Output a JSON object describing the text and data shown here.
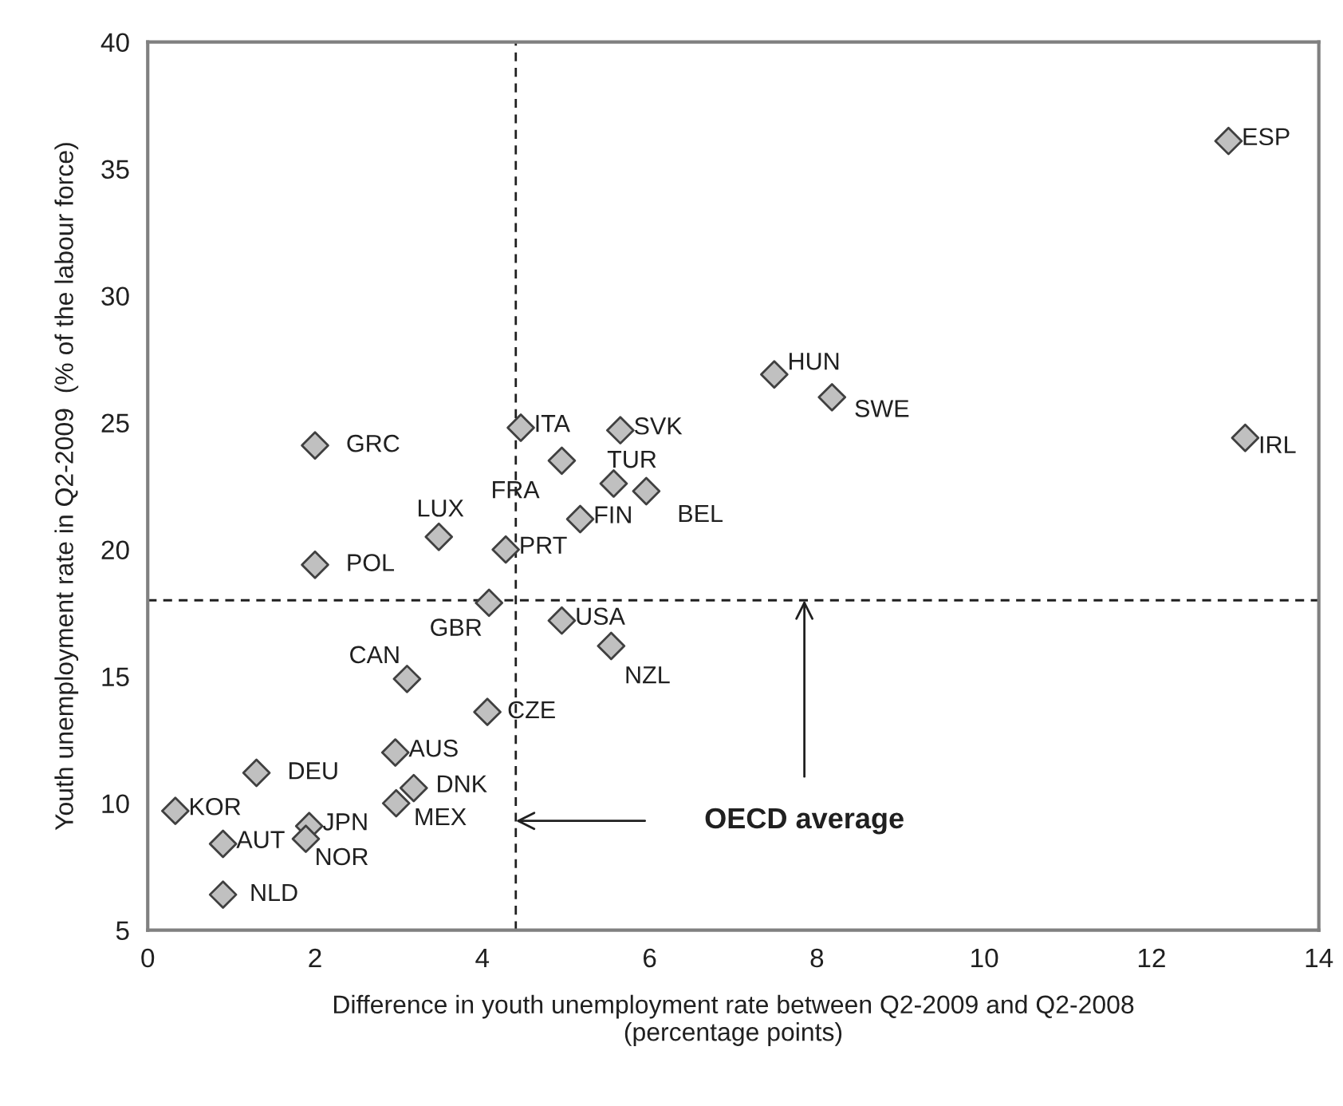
{
  "chart_data": {
    "type": "scatter",
    "xlabel": "Difference in youth unemployment rate between Q2-2009 and Q2-2008\n(percentage points)",
    "ylabel": "Youth unemployment rate in Q2-2009  (% of the labour force)",
    "x": [
      12.92,
      13.12,
      7.49,
      8.18,
      4.46,
      5.65,
      2.0,
      4.95,
      5.57,
      5.96,
      5.17,
      3.48,
      4.28,
      2.0,
      4.08,
      4.95,
      5.54,
      3.1,
      4.06,
      2.96,
      1.3,
      3.18,
      2.97,
      0.33,
      1.93,
      1.89,
      0.9,
      0.9
    ],
    "values": [
      36.1,
      24.4,
      26.9,
      26.0,
      24.8,
      24.7,
      24.1,
      23.5,
      22.6,
      22.3,
      21.2,
      20.5,
      20.0,
      19.4,
      17.9,
      17.2,
      16.2,
      14.9,
      13.6,
      12.0,
      11.2,
      10.6,
      10.0,
      9.7,
      9.1,
      8.6,
      8.4,
      6.4
    ],
    "value_labels": [
      "ESP",
      "IRL",
      "HUN",
      "SWE",
      "ITA",
      "SVK",
      "GRC",
      "FRA",
      "TUR",
      "BEL",
      "FIN",
      "LUX",
      "PRT",
      "POL",
      "GBR",
      "USA",
      "NZL",
      "CAN",
      "CZE",
      "AUS",
      "DEU",
      "DNK",
      "MEX",
      "KOR",
      "JPN",
      "NOR",
      "AUT",
      "NLD"
    ],
    "color": "#c0c0c0",
    "marker": "diamond",
    "xlim": [
      0,
      14
    ],
    "xticks": [
      0,
      2,
      4,
      6,
      8,
      10,
      12,
      14
    ],
    "ylim": [
      5,
      40
    ],
    "yticks": [
      5,
      10,
      15,
      20,
      25,
      30,
      35,
      40
    ],
    "ref_lines": [
      {
        "axis": "x",
        "value": 4.4,
        "line_style": "dashed"
      },
      {
        "axis": "y",
        "value": 18.0,
        "line_style": "dashed"
      }
    ],
    "annotations": [
      {
        "text": "OECD average",
        "x": 7.85,
        "y": 18.0
      }
    ],
    "grid": false,
    "legend": false
  }
}
